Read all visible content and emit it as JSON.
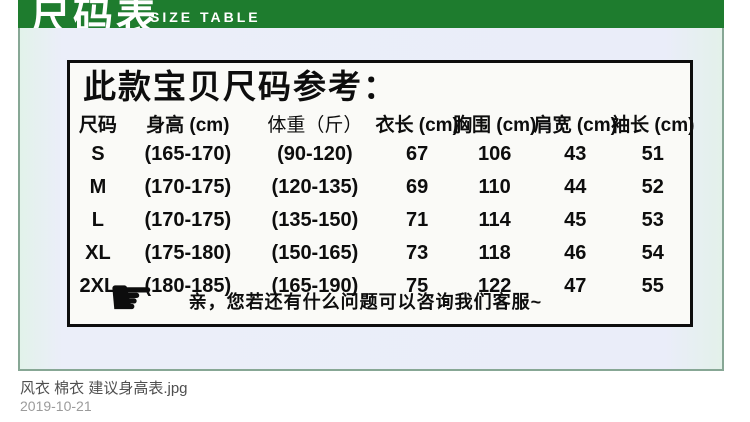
{
  "banner": {
    "title_cn": "尺码表",
    "title_en": "SIZE TABLE"
  },
  "chart_data": {
    "type": "table",
    "title": "此款宝贝尺码参考：",
    "columns": [
      "尺码",
      "身高 (cm)",
      "体重（斤）",
      "衣长 (cm)",
      "胸围 (cm)",
      "肩宽 (cm)",
      "袖长 (cm)"
    ],
    "rows": [
      [
        "S",
        "(165-170)",
        "(90-120)",
        "67",
        "106",
        "43",
        "51"
      ],
      [
        "M",
        "(170-175)",
        "(120-135)",
        "69",
        "110",
        "44",
        "52"
      ],
      [
        "L",
        "(170-175)",
        "(135-150)",
        "71",
        "114",
        "45",
        "53"
      ],
      [
        "XL",
        "(175-180)",
        "(150-165)",
        "73",
        "118",
        "46",
        "54"
      ],
      [
        "2XL",
        "(180-185)",
        "(165-190)",
        "75",
        "122",
        "47",
        "55"
      ]
    ]
  },
  "note": {
    "hand_icon": "☛",
    "text": "亲，您若还有什么问题可以咨询我们客服~"
  },
  "file_info": {
    "name": "风衣 棉衣 建议身高表.jpg",
    "date": "2019-10-21"
  },
  "colors": {
    "banner_green": "#1e7c2e",
    "frame_border": "#87a795",
    "content_bg": "#eaedf9",
    "table_bg": "#fafaf7",
    "text": "#0d0d0d"
  }
}
